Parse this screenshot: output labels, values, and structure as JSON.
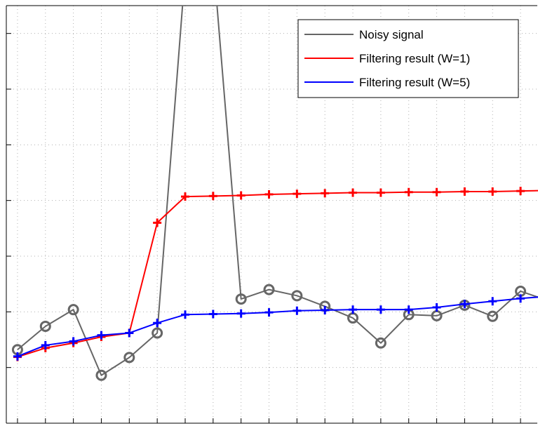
{
  "chart_data": {
    "type": "line",
    "x": [
      1,
      2,
      3,
      4,
      5,
      6,
      7,
      8,
      9,
      10,
      11,
      12,
      13,
      14,
      15,
      16,
      17,
      18,
      19,
      20
    ],
    "series": [
      {
        "name": "Noisy signal",
        "color": "#666666",
        "marker": "circle",
        "values": [
          1.32,
          1.74,
          2.04,
          0.86,
          1.18,
          1.62,
          8.11,
          8.35,
          2.23,
          2.4,
          2.29,
          2.1,
          1.89,
          1.44,
          1.95,
          1.93,
          2.12,
          1.92,
          2.37,
          2.2
        ]
      },
      {
        "name": "Filtering result (W=1)",
        "color": "#ff0000",
        "marker": "plus",
        "values": [
          1.19,
          1.35,
          1.44,
          1.55,
          1.62,
          3.6,
          4.07,
          4.08,
          4.09,
          4.11,
          4.12,
          4.13,
          4.14,
          4.14,
          4.15,
          4.15,
          4.16,
          4.16,
          4.17,
          4.18
        ]
      },
      {
        "name": "Filtering result (W=5)",
        "color": "#0000ff",
        "marker": "plus",
        "values": [
          1.2,
          1.4,
          1.47,
          1.58,
          1.62,
          1.8,
          1.95,
          1.96,
          1.97,
          1.99,
          2.02,
          2.03,
          2.04,
          2.04,
          2.04,
          2.08,
          2.14,
          2.19,
          2.24,
          2.28
        ]
      }
    ],
    "xlim": [
      0.6,
      19.6
    ],
    "ylim": [
      0,
      7.5
    ],
    "grid": true,
    "legend": "top-right",
    "xlabel": "",
    "ylabel": "",
    "title": ""
  }
}
